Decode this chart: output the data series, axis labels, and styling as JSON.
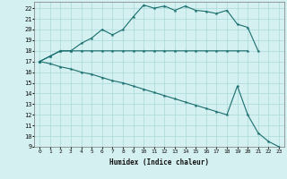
{
  "xlabel": "Humidex (Indice chaleur)",
  "bg_color": "#d4f0f0",
  "grid_color": "#aadada",
  "line_color": "#1a6e6e",
  "xlim": [
    -0.5,
    23.5
  ],
  "ylim": [
    9,
    22.6
  ],
  "yticks": [
    9,
    10,
    11,
    12,
    13,
    14,
    15,
    16,
    17,
    18,
    19,
    20,
    21,
    22
  ],
  "xticks": [
    0,
    1,
    2,
    3,
    4,
    5,
    6,
    7,
    8,
    9,
    10,
    11,
    12,
    13,
    14,
    15,
    16,
    17,
    18,
    19,
    20,
    21,
    22,
    23
  ],
  "curve1_x": [
    0,
    1,
    2,
    3,
    4,
    5,
    6,
    7,
    8,
    9,
    10,
    11,
    12,
    13,
    14,
    15,
    16,
    17,
    18,
    19,
    20,
    21
  ],
  "curve1_y": [
    17.0,
    17.5,
    18.0,
    18.0,
    18.7,
    19.2,
    20.0,
    19.5,
    20.0,
    21.2,
    22.3,
    22.0,
    22.2,
    21.8,
    22.2,
    21.8,
    21.7,
    21.5,
    21.8,
    20.5,
    20.2,
    18.0
  ],
  "curve2_x": [
    0,
    1,
    2,
    3,
    4,
    5,
    6,
    7,
    8,
    9,
    10,
    11,
    12,
    13,
    14,
    15,
    16,
    17,
    18,
    19,
    20
  ],
  "curve2_y": [
    17.0,
    17.5,
    18.0,
    18.0,
    18.0,
    18.0,
    18.0,
    18.0,
    18.0,
    18.0,
    18.0,
    18.0,
    18.0,
    18.0,
    18.0,
    18.0,
    18.0,
    18.0,
    18.0,
    18.0,
    18.0
  ],
  "curve3_x": [
    0,
    1,
    2,
    3,
    4,
    5,
    6,
    7,
    8,
    9,
    10,
    11,
    12,
    13,
    14,
    15,
    16,
    17,
    18,
    19,
    20,
    21,
    22,
    23
  ],
  "curve3_y": [
    17.0,
    16.8,
    16.5,
    16.3,
    16.0,
    15.8,
    15.5,
    15.2,
    15.0,
    14.7,
    14.4,
    14.1,
    13.8,
    13.5,
    13.2,
    12.9,
    12.6,
    12.3,
    12.0,
    14.7,
    12.0,
    10.3,
    9.5,
    9.0
  ]
}
